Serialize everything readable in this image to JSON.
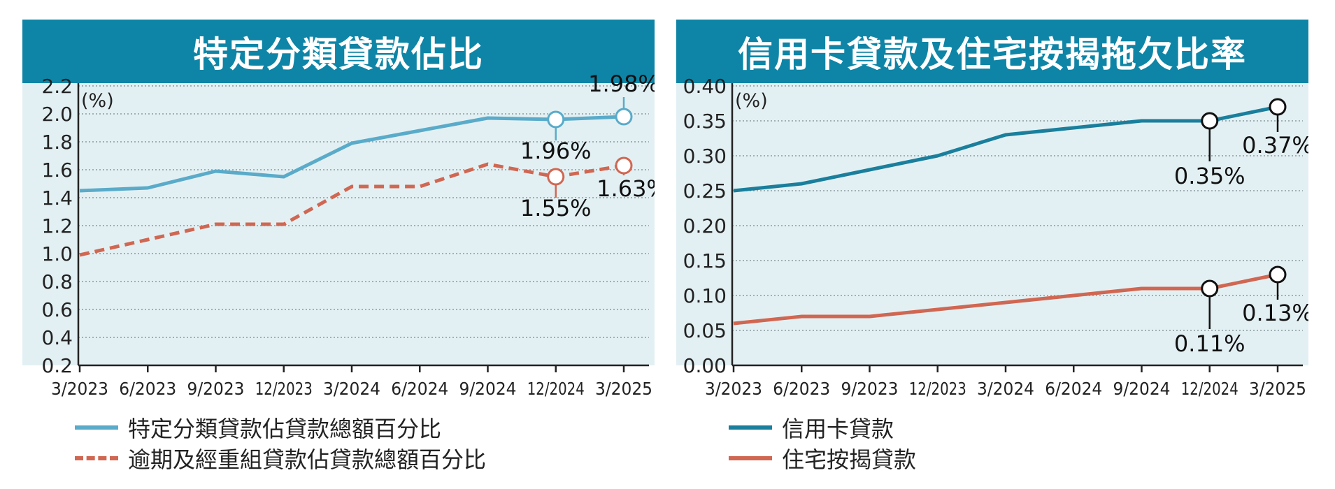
{
  "colors": {
    "header": "#0e85a6",
    "plot_bg": "#e3f0f3",
    "blue": "#5aabc9",
    "teal": "#1a7f9c",
    "red": "#d06752",
    "grid": "#8a9aa0"
  },
  "chart_data": [
    {
      "type": "line",
      "title": "特定分類貸款佔比",
      "unit_label": "(%)",
      "categories": [
        "3/2023",
        "6/2023",
        "9/2023",
        "12/2023",
        "3/2024",
        "6/2024",
        "9/2024",
        "12/2024",
        "3/2025"
      ],
      "ylim": [
        0.2,
        2.2
      ],
      "yticks": [
        "0.2",
        "0.4",
        "0.6",
        "0.8",
        "1.0",
        "1.2",
        "1.4",
        "1.6",
        "1.8",
        "2.0",
        "2.2"
      ],
      "grid": true,
      "series": [
        {
          "name": "特定分類貸款佔貸款總額百分比",
          "style": "solid",
          "color": "#5aabc9",
          "values": [
            1.45,
            1.47,
            1.59,
            1.55,
            1.79,
            1.88,
            1.97,
            1.96,
            1.98
          ]
        },
        {
          "name": "逾期及經重組貸款佔貸款總額百分比",
          "style": "dashed",
          "color": "#d06752",
          "values": [
            0.99,
            1.1,
            1.21,
            1.21,
            1.48,
            1.48,
            1.64,
            1.55,
            1.63
          ]
        }
      ],
      "annotations": [
        {
          "text": "1.98%",
          "series": 0,
          "index": 8,
          "pos": "above"
        },
        {
          "text": "1.96%",
          "series": 0,
          "index": 7,
          "pos": "below"
        },
        {
          "text": "1.55%",
          "series": 1,
          "index": 7,
          "pos": "below"
        },
        {
          "text": "1.63%",
          "series": 1,
          "index": 8,
          "pos": "below"
        }
      ]
    },
    {
      "type": "line",
      "title": "信用卡貸款及住宅按揭拖欠比率",
      "unit_label": "(%)",
      "categories": [
        "3/2023",
        "6/2023",
        "9/2023",
        "12/2023",
        "3/2024",
        "6/2024",
        "9/2024",
        "12/2024",
        "3/2025"
      ],
      "ylim": [
        0.0,
        0.4
      ],
      "yticks": [
        "0.00",
        "0.05",
        "0.10",
        "0.15",
        "0.20",
        "0.25",
        "0.30",
        "0.35",
        "0.40"
      ],
      "grid": true,
      "series": [
        {
          "name": "信用卡貸款",
          "style": "solid",
          "color": "#1a7f9c",
          "values": [
            0.25,
            0.26,
            0.28,
            0.3,
            0.33,
            0.34,
            0.35,
            0.35,
            0.37
          ]
        },
        {
          "name": "住宅按揭貸款",
          "style": "solid",
          "color": "#d06752",
          "values": [
            0.06,
            0.07,
            0.07,
            0.08,
            0.09,
            0.1,
            0.11,
            0.11,
            0.13
          ]
        }
      ],
      "annotations": [
        {
          "text": "0.35%",
          "series": 0,
          "index": 7,
          "pos": "below"
        },
        {
          "text": "0.37%",
          "series": 0,
          "index": 8,
          "pos": "below"
        },
        {
          "text": "0.11%",
          "series": 1,
          "index": 7,
          "pos": "below"
        },
        {
          "text": "0.13%",
          "series": 1,
          "index": 8,
          "pos": "below"
        }
      ]
    }
  ]
}
